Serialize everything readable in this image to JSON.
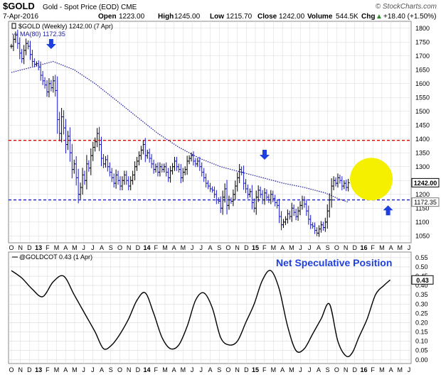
{
  "header": {
    "symbol": "$GOLD",
    "description": "Gold - Spot Price (EOD) CME",
    "watermark": "© StockCharts.com",
    "date": "7-Apr-2016",
    "open_label": "Open",
    "open": "1223.00",
    "high_label": "High",
    "high": "1245.00",
    "low_label": "Low",
    "low": "1215.70",
    "close_label": "Close",
    "close": "1242.00",
    "volume_label": "Volume",
    "volume": "544.5K",
    "chg_label": "Chg",
    "chg": "+18.40 (+1.50%)",
    "chg_arrow": "▲"
  },
  "colors": {
    "price_bars": "#000000",
    "ma_line": "#1a1aa0",
    "red_line": "#e00000",
    "blue_line": "#1a1ad0",
    "arrow": "#1f3fe0",
    "highlight": "#f4f000",
    "cot_line": "#000000",
    "grid": "#d9d9d9",
    "annotation": "#1f3fe0"
  },
  "chart_data": [
    {
      "type": "ohlc",
      "legend": [
        {
          "label": "$GOLD (Weekly) 1242.00 (7 Apr)",
          "style": "bars"
        },
        {
          "label": "MA(80) 1172.35",
          "style": "dotted"
        }
      ],
      "x_labels": [
        "O",
        "N",
        "D",
        "13",
        "F",
        "M",
        "A",
        "M",
        "J",
        "J",
        "A",
        "S",
        "O",
        "N",
        "D",
        "14",
        "F",
        "M",
        "A",
        "M",
        "J",
        "J",
        "A",
        "S",
        "O",
        "N",
        "D",
        "15",
        "F",
        "M",
        "A",
        "M",
        "J",
        "J",
        "A",
        "S",
        "O",
        "N",
        "D",
        "16",
        "F",
        "M",
        "A",
        "M",
        "J"
      ],
      "year_labels": [
        "13",
        "14",
        "15",
        "16"
      ],
      "y_ticks": [
        1050,
        1100,
        1150,
        1200,
        1250,
        1300,
        1350,
        1400,
        1450,
        1500,
        1550,
        1600,
        1650,
        1700,
        1750,
        1800
      ],
      "ylim": [
        1025,
        1825
      ],
      "close_points": [
        [
          0,
          1735
        ],
        [
          1,
          1760
        ],
        [
          2,
          1775
        ],
        [
          3,
          1745
        ],
        [
          4,
          1710
        ],
        [
          5,
          1690
        ],
        [
          6,
          1720
        ],
        [
          7,
          1745
        ],
        [
          8,
          1735
        ],
        [
          9,
          1705
        ],
        [
          10,
          1680
        ],
        [
          11,
          1670
        ],
        [
          12,
          1672
        ],
        [
          13,
          1660
        ],
        [
          14,
          1630
        ],
        [
          15,
          1610
        ],
        [
          16,
          1595
        ],
        [
          17,
          1570
        ],
        [
          18,
          1600
        ],
        [
          19,
          1585
        ],
        [
          20,
          1610
        ],
        [
          21,
          1575
        ],
        [
          22,
          1470
        ],
        [
          23,
          1420
        ],
        [
          24,
          1480
        ],
        [
          25,
          1440
        ],
        [
          26,
          1380
        ],
        [
          27,
          1410
        ],
        [
          28,
          1350
        ],
        [
          29,
          1290
        ],
        [
          30,
          1310
        ],
        [
          31,
          1260
        ],
        [
          32,
          1200
        ],
        [
          33,
          1225
        ],
        [
          34,
          1270
        ],
        [
          35,
          1250
        ],
        [
          36,
          1310
        ],
        [
          37,
          1295
        ],
        [
          38,
          1340
        ],
        [
          39,
          1370
        ],
        [
          40,
          1390
        ],
        [
          41,
          1420
        ],
        [
          42,
          1380
        ],
        [
          43,
          1330
        ],
        [
          44,
          1310
        ],
        [
          45,
          1325
        ],
        [
          46,
          1300
        ],
        [
          47,
          1280
        ],
        [
          48,
          1260
        ],
        [
          49,
          1240
        ],
        [
          50,
          1270
        ],
        [
          51,
          1250
        ],
        [
          52,
          1230
        ],
        [
          53,
          1250
        ],
        [
          54,
          1270
        ],
        [
          55,
          1250
        ],
        [
          56,
          1230
        ],
        [
          57,
          1250
        ],
        [
          58,
          1270
        ],
        [
          59,
          1300
        ],
        [
          60,
          1320
        ],
        [
          61,
          1340
        ],
        [
          62,
          1360
        ],
        [
          63,
          1380
        ],
        [
          64,
          1340
        ],
        [
          65,
          1350
        ],
        [
          66,
          1330
        ],
        [
          67,
          1310
        ],
        [
          68,
          1290
        ],
        [
          69,
          1300
        ],
        [
          70,
          1280
        ],
        [
          71,
          1300
        ],
        [
          72,
          1290
        ],
        [
          73,
          1300
        ],
        [
          74,
          1280
        ],
        [
          75,
          1260
        ],
        [
          76,
          1285
        ],
        [
          77,
          1300
        ],
        [
          78,
          1320
        ],
        [
          79,
          1300
        ],
        [
          80,
          1290
        ],
        [
          81,
          1260
        ],
        [
          82,
          1280
        ],
        [
          83,
          1290
        ],
        [
          84,
          1320
        ],
        [
          85,
          1330
        ],
        [
          86,
          1340
        ],
        [
          87,
          1320
        ],
        [
          88,
          1310
        ],
        [
          89,
          1320
        ],
        [
          90,
          1300
        ],
        [
          91,
          1280
        ],
        [
          92,
          1260
        ],
        [
          93,
          1240
        ],
        [
          94,
          1230
        ],
        [
          95,
          1220
        ],
        [
          96,
          1215
        ],
        [
          97,
          1200
        ],
        [
          98,
          1180
        ],
        [
          99,
          1175
        ],
        [
          100,
          1150
        ],
        [
          101,
          1190
        ],
        [
          102,
          1220
        ],
        [
          103,
          1160
        ],
        [
          104,
          1180
        ],
        [
          105,
          1175
        ],
        [
          106,
          1200
        ],
        [
          107,
          1230
        ],
        [
          108,
          1260
        ],
        [
          109,
          1290
        ],
        [
          110,
          1280
        ],
        [
          111,
          1240
        ],
        [
          112,
          1220
        ],
        [
          113,
          1200
        ],
        [
          114,
          1210
        ],
        [
          115,
          1170
        ],
        [
          116,
          1150
        ],
        [
          117,
          1190
        ],
        [
          118,
          1215
        ],
        [
          119,
          1200
        ],
        [
          120,
          1180
        ],
        [
          121,
          1205
        ],
        [
          122,
          1190
        ],
        [
          123,
          1180
        ],
        [
          124,
          1200
        ],
        [
          125,
          1185
        ],
        [
          126,
          1170
        ],
        [
          127,
          1160
        ],
        [
          128,
          1120
        ],
        [
          129,
          1090
        ],
        [
          130,
          1100
        ],
        [
          131,
          1110
        ],
        [
          132,
          1130
        ],
        [
          133,
          1120
        ],
        [
          134,
          1150
        ],
        [
          135,
          1135
        ],
        [
          136,
          1120
        ],
        [
          137,
          1140
        ],
        [
          138,
          1160
        ],
        [
          139,
          1180
        ],
        [
          140,
          1165
        ],
        [
          141,
          1140
        ],
        [
          142,
          1110
        ],
        [
          143,
          1090
        ],
        [
          144,
          1085
        ],
        [
          145,
          1070
        ],
        [
          146,
          1060
        ],
        [
          147,
          1075
        ],
        [
          148,
          1090
        ],
        [
          149,
          1080
        ],
        [
          150,
          1100
        ],
        [
          151,
          1140
        ],
        [
          152,
          1180
        ],
        [
          153,
          1230
        ],
        [
          154,
          1250
        ],
        [
          155,
          1240
        ],
        [
          156,
          1260
        ],
        [
          157,
          1250
        ],
        [
          158,
          1230
        ],
        [
          159,
          1240
        ],
        [
          160,
          1225
        ],
        [
          161,
          1242
        ]
      ],
      "ma80_points": [
        [
          0,
          1640
        ],
        [
          10,
          1660
        ],
        [
          20,
          1680
        ],
        [
          30,
          1650
        ],
        [
          40,
          1600
        ],
        [
          50,
          1540
        ],
        [
          60,
          1480
        ],
        [
          70,
          1420
        ],
        [
          80,
          1370
        ],
        [
          90,
          1330
        ],
        [
          100,
          1300
        ],
        [
          110,
          1280
        ],
        [
          120,
          1260
        ],
        [
          130,
          1240
        ],
        [
          140,
          1225
        ],
        [
          150,
          1205
        ],
        [
          157,
          1182
        ],
        [
          161,
          1172
        ]
      ],
      "horizontal_lines": [
        {
          "value": 1395,
          "color": "red",
          "style": "dashed"
        },
        {
          "value": 1180,
          "color": "blue",
          "style": "dashed"
        }
      ],
      "arrows": [
        {
          "x": 19,
          "value": 1730,
          "direction": "down"
        },
        {
          "x": 121,
          "value": 1330,
          "direction": "down"
        },
        {
          "x": 180,
          "value": 1155,
          "direction": "up"
        }
      ],
      "highlight_circle": {
        "x_center": 172,
        "value_center": 1255
      },
      "price_tags": [
        {
          "label": "1242.00",
          "value": 1242,
          "style": "box"
        },
        {
          "label": "1172.35",
          "value": 1172,
          "style": "box-light"
        }
      ]
    },
    {
      "type": "line",
      "legend": [
        {
          "label": "@GOLDCOT 0.43 (1 Apr)",
          "style": "line"
        }
      ],
      "annotation": "Net Speculative Position",
      "y_ticks": [
        0.0,
        0.05,
        0.1,
        0.15,
        0.2,
        0.25,
        0.3,
        0.35,
        0.4,
        0.45,
        0.5,
        0.55
      ],
      "ylim": [
        -0.02,
        0.58
      ],
      "current_tag": {
        "label": "0.43",
        "value": 0.43
      },
      "points": [
        [
          0,
          0.48
        ],
        [
          5,
          0.44
        ],
        [
          10,
          0.38
        ],
        [
          15,
          0.34
        ],
        [
          20,
          0.42
        ],
        [
          25,
          0.45
        ],
        [
          30,
          0.35
        ],
        [
          35,
          0.25
        ],
        [
          40,
          0.15
        ],
        [
          44,
          0.06
        ],
        [
          48,
          0.08
        ],
        [
          52,
          0.14
        ],
        [
          56,
          0.22
        ],
        [
          60,
          0.32
        ],
        [
          64,
          0.36
        ],
        [
          68,
          0.25
        ],
        [
          72,
          0.12
        ],
        [
          76,
          0.06
        ],
        [
          80,
          0.08
        ],
        [
          84,
          0.18
        ],
        [
          88,
          0.32
        ],
        [
          92,
          0.36
        ],
        [
          96,
          0.28
        ],
        [
          100,
          0.12
        ],
        [
          104,
          0.08
        ],
        [
          108,
          0.1
        ],
        [
          112,
          0.2
        ],
        [
          116,
          0.3
        ],
        [
          120,
          0.43
        ],
        [
          124,
          0.48
        ],
        [
          128,
          0.38
        ],
        [
          132,
          0.18
        ],
        [
          136,
          0.05
        ],
        [
          140,
          0.06
        ],
        [
          144,
          0.14
        ],
        [
          148,
          0.22
        ],
        [
          152,
          0.3
        ],
        [
          156,
          0.1
        ],
        [
          160,
          0.02
        ],
        [
          163,
          0.04
        ],
        [
          166,
          0.12
        ],
        [
          170,
          0.22
        ],
        [
          174,
          0.35
        ],
        [
          178,
          0.4
        ],
        [
          181,
          0.43
        ]
      ]
    }
  ]
}
